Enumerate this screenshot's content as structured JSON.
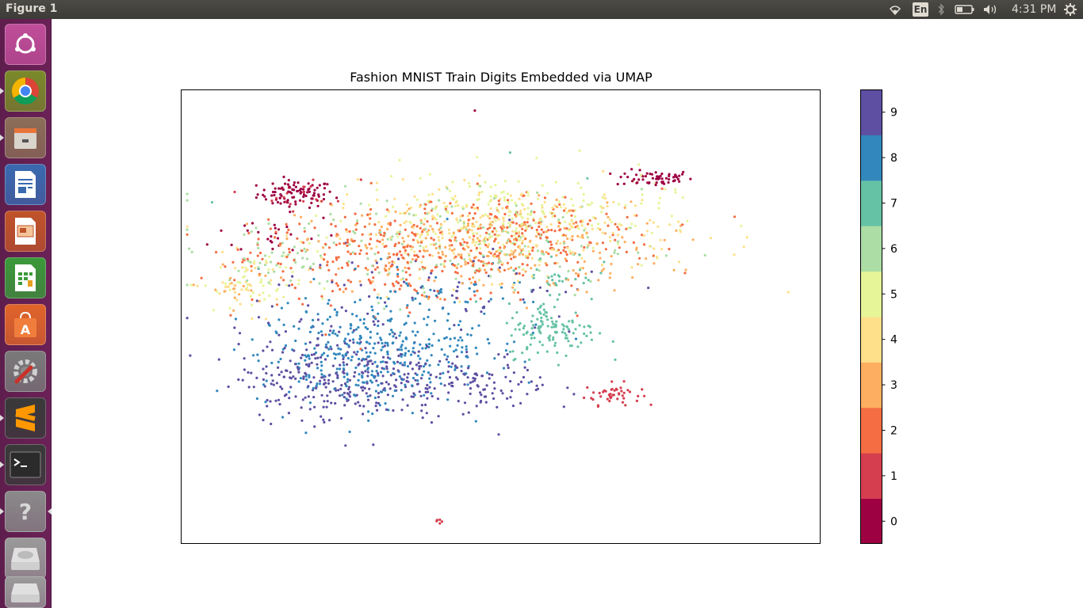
{
  "window": {
    "title": "Figure 1"
  },
  "top_panel": {
    "language": "En",
    "clock": "4:31 PM",
    "icons": [
      "wifi-icon",
      "bluetooth-icon",
      "battery-icon",
      "volume-icon",
      "settings-gear-icon"
    ]
  },
  "launcher": {
    "items": [
      {
        "name": "ubuntu-dash",
        "icon": "ubuntu-logo-icon",
        "color": "#c04e9a",
        "running": false
      },
      {
        "name": "chrome",
        "icon": "chrome-icon",
        "color": "#7a8a2a",
        "running": true
      },
      {
        "name": "files",
        "icon": "file-cabinet-icon",
        "color": "#8b6e58",
        "running": true
      },
      {
        "name": "libreoffice-writer",
        "icon": "writer-document-icon",
        "color": "#3a6ab0",
        "running": false
      },
      {
        "name": "libreoffice-impress",
        "icon": "impress-presentation-icon",
        "color": "#c0542a",
        "running": false
      },
      {
        "name": "libreoffice-calc",
        "icon": "calc-spreadsheet-icon",
        "color": "#3a9a3a",
        "running": false
      },
      {
        "name": "software-center",
        "icon": "software-bag-icon",
        "color": "#e0652a",
        "running": false
      },
      {
        "name": "system-settings",
        "icon": "settings-wrench-icon",
        "color": "#7a7a7a",
        "running": false
      },
      {
        "name": "sublime-text",
        "icon": "sublime-s-icon",
        "color": "#3a3a3a",
        "running": true
      },
      {
        "name": "terminal",
        "icon": "terminal-icon",
        "color": "#3a3a3a",
        "running": true
      },
      {
        "name": "help",
        "icon": "help-question-icon",
        "color": "#8a8a8a",
        "running": true
      },
      {
        "name": "disk-drive",
        "icon": "disk-drive-icon",
        "color": "#9a9a9a",
        "running": false
      },
      {
        "name": "removable-drive",
        "icon": "removable-drive-icon",
        "color": "#9a9a9a",
        "running": false
      }
    ]
  },
  "chart_data": {
    "type": "scatter",
    "title": "Fashion MNIST Train Digits Embedded via UMAP",
    "xlabel": "",
    "ylabel": "",
    "axes_ticks": false,
    "xlim": [
      0,
      100
    ],
    "ylim": [
      0,
      100
    ],
    "grid": false,
    "colormap": "Spectral (discrete, 10 classes)",
    "class_colors": [
      "#9e0142",
      "#d53e4f",
      "#f46d43",
      "#fdae61",
      "#fee08b",
      "#e6f598",
      "#abdda4",
      "#66c2a5",
      "#3288bd",
      "#5e4fa2"
    ],
    "colorbar": {
      "ticks": [
        "0",
        "1",
        "2",
        "3",
        "4",
        "5",
        "6",
        "7",
        "8",
        "9"
      ],
      "range": [
        -0.5,
        9.5
      ]
    },
    "series": [
      {
        "label": "0",
        "clusters": [
          {
            "cx": 18,
            "cy": 77,
            "sx": 3,
            "sy": 1.5,
            "n": 90
          },
          {
            "cx": 74,
            "cy": 80.5,
            "sx": 3,
            "sy": 0.9,
            "n": 60
          },
          {
            "cx": 15,
            "cy": 68,
            "sx": 5,
            "sy": 2.5,
            "n": 25
          },
          {
            "cx": 47,
            "cy": 95,
            "sx": 0.3,
            "sy": 0.3,
            "n": 1
          }
        ]
      },
      {
        "label": "1",
        "clusters": [
          {
            "cx": 67.5,
            "cy": 33,
            "sx": 2.2,
            "sy": 1.2,
            "n": 45
          },
          {
            "cx": 40,
            "cy": 5,
            "sx": 0.3,
            "sy": 0.3,
            "n": 6
          },
          {
            "cx": 20,
            "cy": 77,
            "sx": 4,
            "sy": 1.8,
            "n": 20
          }
        ]
      },
      {
        "label": "2",
        "clusters": [
          {
            "cx": 35,
            "cy": 63,
            "sx": 12,
            "sy": 5,
            "n": 280
          },
          {
            "cx": 55,
            "cy": 68,
            "sx": 10,
            "sy": 5,
            "n": 160
          },
          {
            "cx": 12,
            "cy": 66,
            "sx": 3,
            "sy": 3,
            "n": 20
          }
        ]
      },
      {
        "label": "3",
        "clusters": [
          {
            "cx": 47,
            "cy": 65,
            "sx": 14,
            "sy": 5,
            "n": 260
          },
          {
            "cx": 8,
            "cy": 56,
            "sx": 2,
            "sy": 2.5,
            "n": 18
          }
        ]
      },
      {
        "label": "4",
        "clusters": [
          {
            "cx": 50,
            "cy": 69,
            "sx": 14,
            "sy": 5,
            "n": 260
          },
          {
            "cx": 10,
            "cy": 57,
            "sx": 3,
            "sy": 3,
            "n": 30
          },
          {
            "cx": 95.5,
            "cy": 55.5,
            "sx": 0.2,
            "sy": 0.2,
            "n": 1
          }
        ]
      },
      {
        "label": "5",
        "clusters": [
          {
            "cx": 52,
            "cy": 72,
            "sx": 12,
            "sy": 5,
            "n": 220
          },
          {
            "cx": 11,
            "cy": 57,
            "sx": 4,
            "sy": 3,
            "n": 45
          }
        ]
      },
      {
        "label": "6",
        "clusters": [
          {
            "cx": 40,
            "cy": 66,
            "sx": 16,
            "sy": 6,
            "n": 170
          },
          {
            "cx": 16,
            "cy": 63,
            "sx": 5,
            "sy": 3,
            "n": 25
          }
        ]
      },
      {
        "label": "7",
        "clusters": [
          {
            "cx": 58,
            "cy": 47,
            "sx": 3.5,
            "sy": 3,
            "n": 120
          },
          {
            "cx": 59,
            "cy": 59,
            "sx": 3,
            "sy": 3,
            "n": 35
          },
          {
            "cx": 51.5,
            "cy": 86.5,
            "sx": 0.3,
            "sy": 0.3,
            "n": 1
          },
          {
            "cx": 63.5,
            "cy": 80.5,
            "sx": 0.3,
            "sy": 0.3,
            "n": 1
          },
          {
            "cx": 4.5,
            "cy": 75,
            "sx": 0.3,
            "sy": 0.3,
            "n": 1
          }
        ]
      },
      {
        "label": "8",
        "clusters": [
          {
            "cx": 28,
            "cy": 41,
            "sx": 8,
            "sy": 5.5,
            "n": 320
          },
          {
            "cx": 38,
            "cy": 50,
            "sx": 10,
            "sy": 6,
            "n": 110
          }
        ]
      },
      {
        "label": "9",
        "clusters": [
          {
            "cx": 25,
            "cy": 37,
            "sx": 8,
            "sy": 5,
            "n": 300
          },
          {
            "cx": 46,
            "cy": 35,
            "sx": 6,
            "sy": 3.5,
            "n": 110
          },
          {
            "cx": 40,
            "cy": 55,
            "sx": 14,
            "sy": 6,
            "n": 80
          }
        ]
      }
    ]
  }
}
